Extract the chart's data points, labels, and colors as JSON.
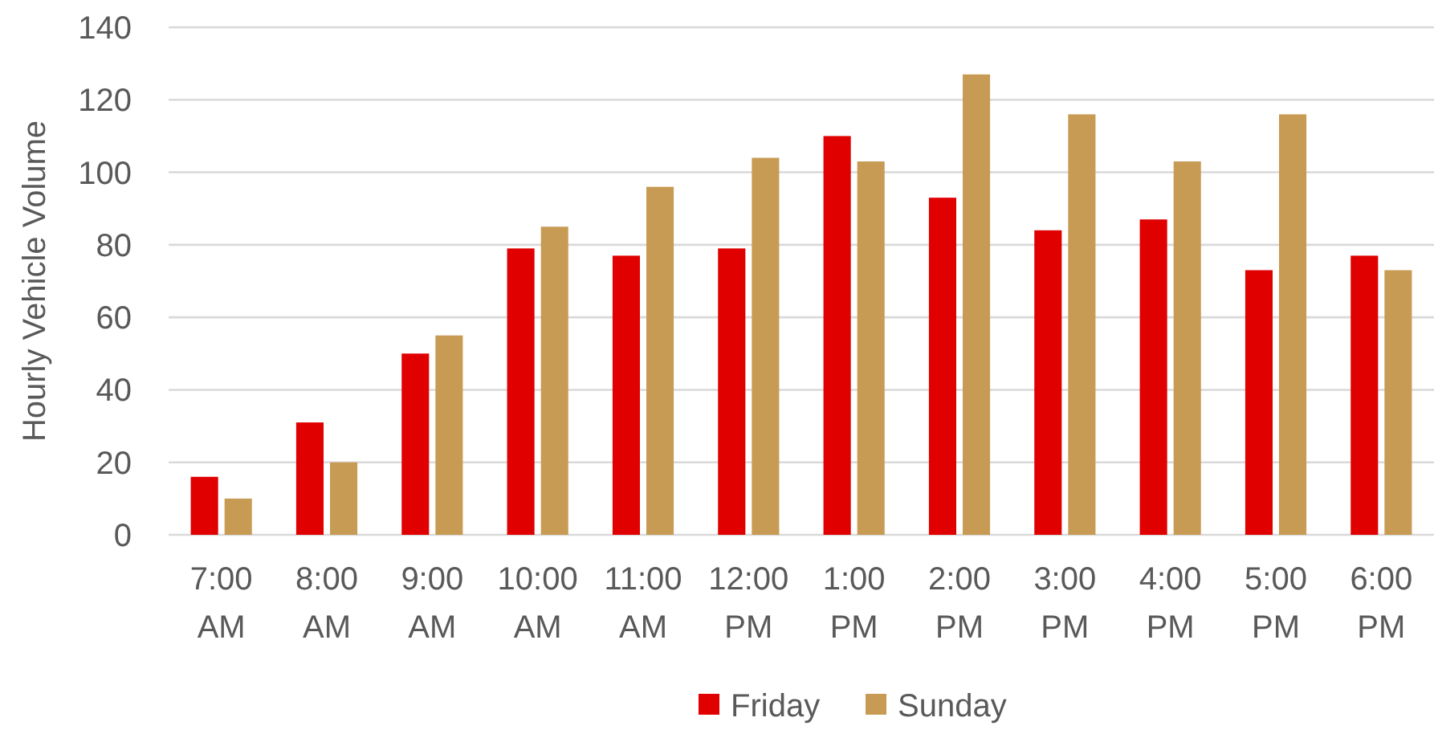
{
  "chart_data": {
    "type": "bar",
    "ylabel": "Hourly Vehicle Volume",
    "categories": [
      "7:00 AM",
      "8:00 AM",
      "9:00 AM",
      "10:00 AM",
      "11:00 AM",
      "12:00 PM",
      "1:00 PM",
      "2:00 PM",
      "3:00 PM",
      "4:00 PM",
      "5:00 PM",
      "6:00 PM"
    ],
    "series": [
      {
        "name": "Friday",
        "color": "#e00000",
        "values": [
          16,
          31,
          50,
          79,
          77,
          79,
          110,
          93,
          84,
          87,
          73,
          77
        ]
      },
      {
        "name": "Sunday",
        "color": "#c89b55",
        "values": [
          10,
          20,
          55,
          85,
          96,
          104,
          103,
          127,
          116,
          103,
          116,
          73
        ]
      }
    ],
    "ylim": [
      0,
      140
    ],
    "yticks": [
      0,
      20,
      40,
      60,
      80,
      100,
      120,
      140
    ],
    "grid": "y",
    "legend": "bottom"
  }
}
